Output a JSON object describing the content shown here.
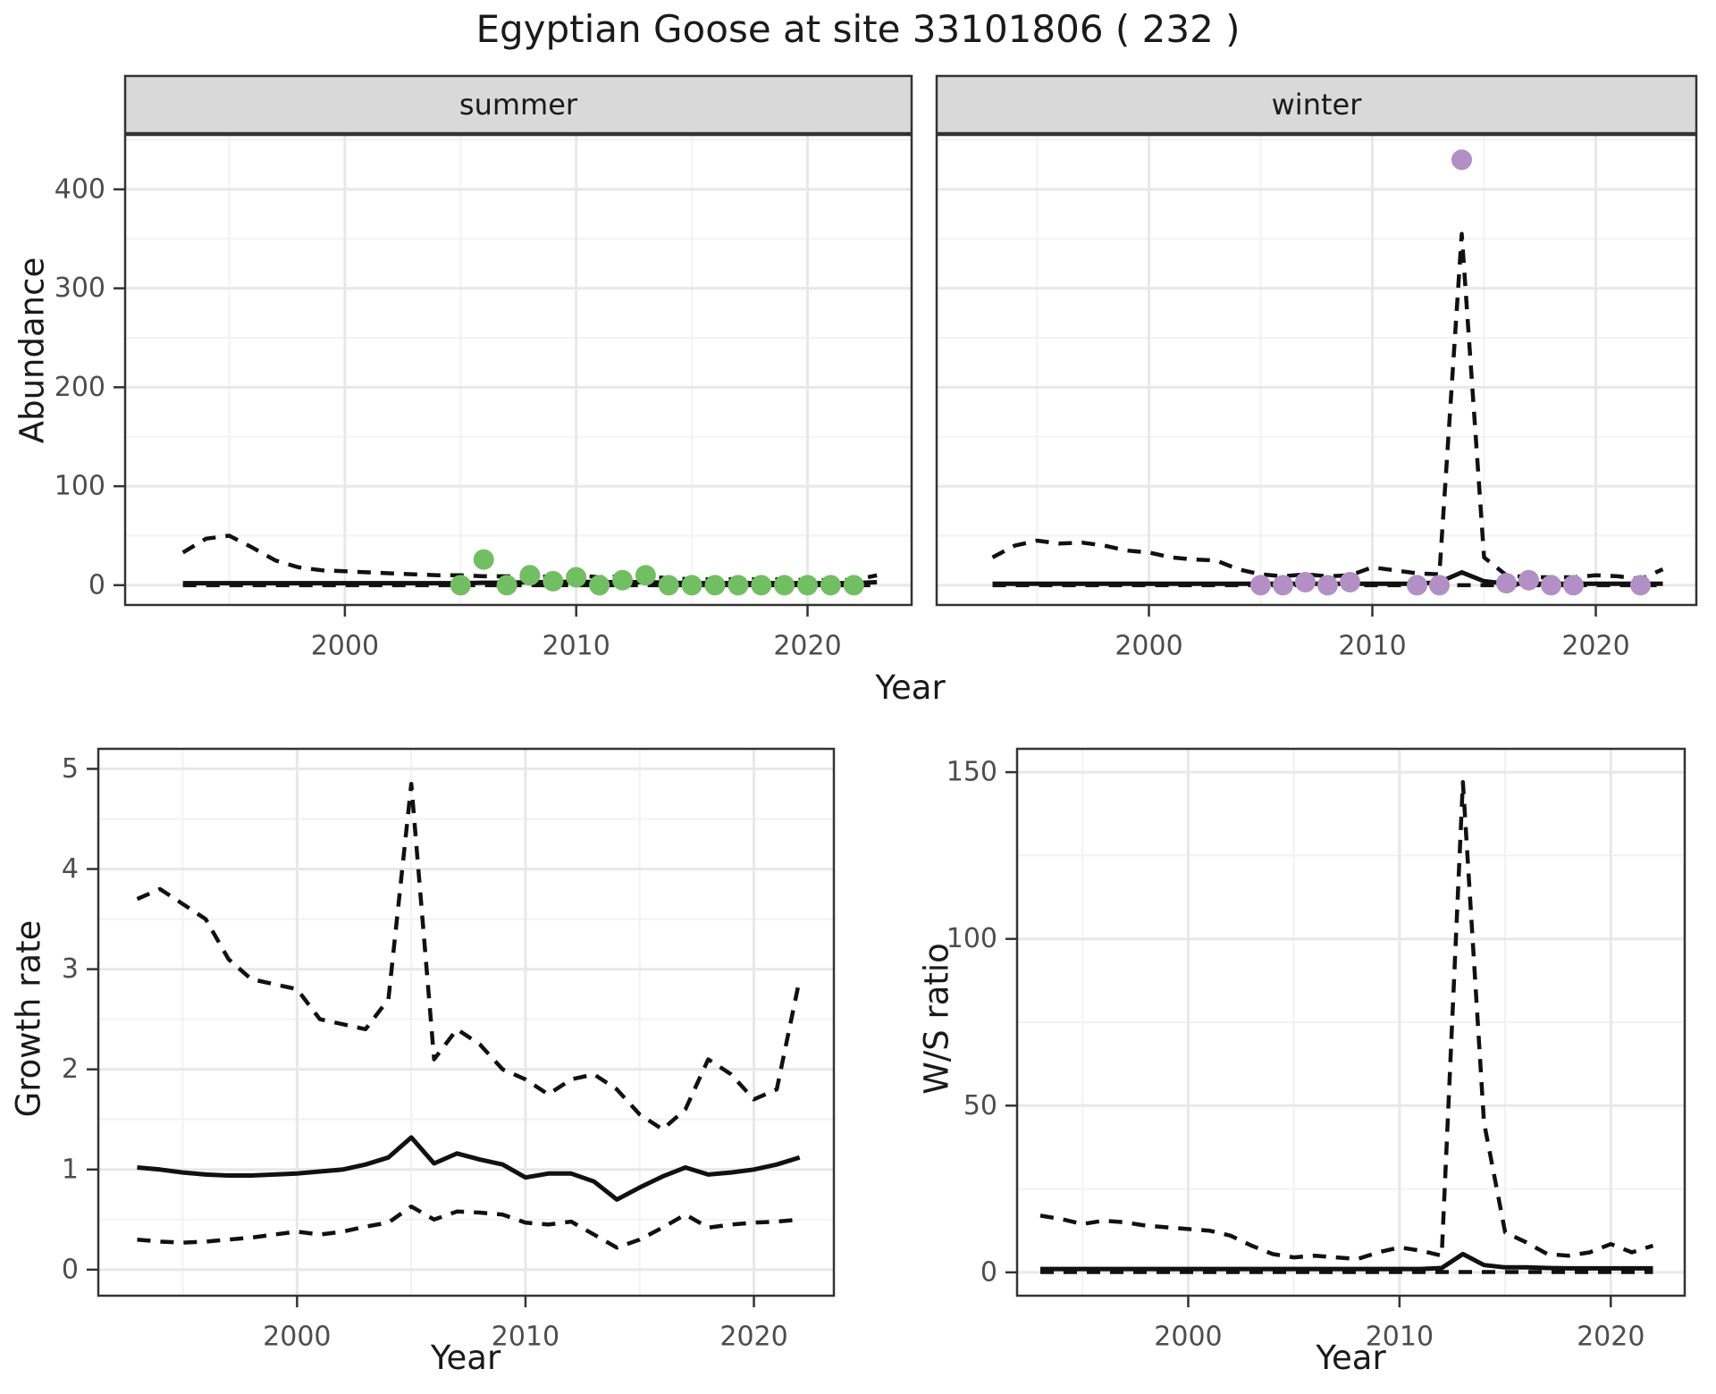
{
  "title": "Egyptian Goose at site 33101806 ( 232 )",
  "axis_labels": {
    "x_top": "Year",
    "x_bottom_left": "Year",
    "x_bottom_right": "Year",
    "y_top": "Abundance",
    "y_bottom_left": "Growth rate",
    "y_bottom_right": "W/S ratio"
  },
  "colors": {
    "summer_points": "#72be63",
    "winter_points": "#b28fc4",
    "line": "#111111",
    "strip_fill": "#d9d9d9",
    "panel_border": "#333333",
    "grid_major": "#e8e8e8",
    "grid_minor": "#f2f2f2",
    "tick_text": "#4d4d4d",
    "strip_text": "#1a1a1a"
  },
  "chart_data": [
    {
      "id": "abundance-summer",
      "type": "line",
      "facet_label": "summer",
      "xlabel": "Year",
      "ylabel": "Abundance",
      "x_range": [
        1990.5,
        2024.5
      ],
      "y_range": [
        -20,
        455
      ],
      "x_ticks": [
        2000,
        2010,
        2020
      ],
      "y_ticks": [
        0,
        100,
        200,
        300,
        400
      ],
      "x_minor": [
        1995,
        2005,
        2015
      ],
      "y_minor": [
        50,
        150,
        250,
        350,
        450
      ],
      "series": [
        {
          "name": "upper-ci",
          "style": "dashed",
          "x": [
            1993,
            1994,
            1995,
            1996,
            1997,
            1998,
            1999,
            2000,
            2001,
            2002,
            2003,
            2004,
            2005,
            2006,
            2007,
            2008,
            2009,
            2010,
            2011,
            2012,
            2013,
            2014,
            2015,
            2016,
            2017,
            2018,
            2019,
            2020,
            2021,
            2022,
            2023
          ],
          "y": [
            33,
            47,
            50,
            38,
            25,
            18,
            15,
            14,
            13,
            12,
            11,
            10,
            10,
            9,
            9,
            8,
            9,
            10,
            8,
            9,
            9,
            7,
            6,
            6,
            6,
            6,
            6,
            5,
            5,
            5,
            10
          ]
        },
        {
          "name": "estimate",
          "style": "solid",
          "x": [
            1993,
            1994,
            1995,
            1996,
            1997,
            1998,
            1999,
            2000,
            2001,
            2002,
            2003,
            2004,
            2005,
            2006,
            2007,
            2008,
            2009,
            2010,
            2011,
            2012,
            2013,
            2014,
            2015,
            2016,
            2017,
            2018,
            2019,
            2020,
            2021,
            2022,
            2023
          ],
          "y": [
            2,
            2,
            2,
            2,
            2,
            2,
            2,
            2,
            2,
            2,
            2,
            2,
            2,
            2.5,
            2.5,
            3,
            3,
            3.5,
            3,
            3,
            3,
            2.5,
            2,
            2,
            2,
            2,
            2,
            2,
            2,
            2,
            3
          ]
        },
        {
          "name": "lower-ci",
          "style": "dashed",
          "x": [
            1993,
            1994,
            1995,
            1996,
            1997,
            1998,
            1999,
            2000,
            2001,
            2002,
            2003,
            2004,
            2005,
            2006,
            2007,
            2008,
            2009,
            2010,
            2011,
            2012,
            2013,
            2014,
            2015,
            2016,
            2017,
            2018,
            2019,
            2020,
            2021,
            2022,
            2023
          ],
          "y": [
            0,
            0,
            0,
            0,
            0,
            0,
            0,
            0,
            0,
            0,
            0,
            0,
            0,
            0,
            0,
            0,
            0,
            0,
            0,
            0,
            0,
            0,
            0,
            0,
            0,
            0,
            0,
            0,
            0,
            0,
            0
          ]
        }
      ],
      "points": {
        "name": "observed-counts-summer",
        "color": "#72be63",
        "x": [
          2005,
          2006,
          2007,
          2008,
          2009,
          2010,
          2011,
          2012,
          2013,
          2014,
          2015,
          2016,
          2017,
          2018,
          2019,
          2020,
          2021,
          2022
        ],
        "y": [
          0,
          26,
          0,
          10,
          4,
          8,
          0,
          5,
          10,
          0,
          0,
          0,
          0,
          0,
          0,
          0,
          0,
          0
        ]
      }
    },
    {
      "id": "abundance-winter",
      "type": "line",
      "facet_label": "winter",
      "xlabel": "Year",
      "ylabel": "Abundance",
      "x_range": [
        1990.5,
        2024.5
      ],
      "y_range": [
        -20,
        455
      ],
      "x_ticks": [
        2000,
        2010,
        2020
      ],
      "y_ticks": [
        0,
        100,
        200,
        300,
        400
      ],
      "x_minor": [
        1995,
        2005,
        2015
      ],
      "y_minor": [
        50,
        150,
        250,
        350,
        450
      ],
      "series": [
        {
          "name": "upper-ci",
          "style": "dashed",
          "x": [
            1993,
            1994,
            1995,
            1996,
            1997,
            1998,
            1999,
            2000,
            2001,
            2002,
            2003,
            2004,
            2005,
            2006,
            2007,
            2008,
            2009,
            2010,
            2011,
            2012,
            2013,
            2014,
            2015,
            2016,
            2017,
            2018,
            2019,
            2020,
            2021,
            2022,
            2023
          ],
          "y": [
            28,
            40,
            45,
            42,
            43,
            40,
            35,
            33,
            28,
            26,
            25,
            16,
            11,
            9,
            11,
            9,
            10,
            18,
            15,
            12,
            11,
            355,
            28,
            10,
            8,
            8,
            8,
            10,
            9,
            6,
            16
          ]
        },
        {
          "name": "estimate",
          "style": "solid",
          "x": [
            1993,
            1994,
            1995,
            1996,
            1997,
            1998,
            1999,
            2000,
            2001,
            2002,
            2003,
            2004,
            2005,
            2006,
            2007,
            2008,
            2009,
            2010,
            2011,
            2012,
            2013,
            2014,
            2015,
            2016,
            2017,
            2018,
            2019,
            2020,
            2021,
            2022,
            2023
          ],
          "y": [
            1.5,
            1.5,
            1.5,
            1.5,
            1.5,
            1.5,
            1.5,
            1.5,
            1.5,
            1.5,
            1.5,
            1.5,
            1.5,
            1.5,
            1.5,
            1.5,
            1.5,
            1.5,
            1.5,
            1.5,
            3,
            13,
            4,
            1.5,
            1.5,
            1.5,
            1.5,
            1.5,
            1.5,
            1.5,
            1.5
          ]
        },
        {
          "name": "lower-ci",
          "style": "dashed",
          "x": [
            1993,
            1994,
            1995,
            1996,
            1997,
            1998,
            1999,
            2000,
            2001,
            2002,
            2003,
            2004,
            2005,
            2006,
            2007,
            2008,
            2009,
            2010,
            2011,
            2012,
            2013,
            2014,
            2015,
            2016,
            2017,
            2018,
            2019,
            2020,
            2021,
            2022,
            2023
          ],
          "y": [
            0,
            0,
            0,
            0,
            0,
            0,
            0,
            0,
            0,
            0,
            0,
            0,
            0,
            0,
            0,
            0,
            0,
            0,
            0,
            0,
            0,
            0,
            0,
            0,
            0,
            0,
            0,
            0,
            0,
            0,
            0
          ]
        }
      ],
      "points": {
        "name": "observed-counts-winter",
        "color": "#b28fc4",
        "x": [
          2005,
          2006,
          2007,
          2008,
          2009,
          2012,
          2013,
          2014,
          2016,
          2017,
          2018,
          2019,
          2022
        ],
        "y": [
          0,
          0,
          3,
          0,
          3,
          0,
          0,
          430,
          2,
          5,
          0,
          0,
          0
        ]
      }
    },
    {
      "id": "growth-rate",
      "type": "line",
      "facet_label": null,
      "xlabel": "Year",
      "ylabel": "Growth rate",
      "x_range": [
        1991.3,
        2023.5
      ],
      "y_range": [
        -0.26,
        5.2
      ],
      "x_ticks": [
        2000,
        2010,
        2020
      ],
      "y_ticks": [
        0,
        1,
        2,
        3,
        4,
        5
      ],
      "x_minor": [
        1995,
        2005,
        2015
      ],
      "y_minor": [
        0.5,
        1.5,
        2.5,
        3.5,
        4.5
      ],
      "series": [
        {
          "name": "upper-ci",
          "style": "dashed",
          "x": [
            1993,
            1994,
            1995,
            1996,
            1997,
            1998,
            1999,
            2000,
            2001,
            2002,
            2003,
            2004,
            2005,
            2006,
            2007,
            2008,
            2009,
            2010,
            2011,
            2012,
            2013,
            2014,
            2015,
            2016,
            2017,
            2018,
            2019,
            2020,
            2021,
            2022
          ],
          "y": [
            3.7,
            3.8,
            3.65,
            3.5,
            3.1,
            2.9,
            2.85,
            2.8,
            2.5,
            2.45,
            2.4,
            2.7,
            4.85,
            2.1,
            2.4,
            2.25,
            2.0,
            1.9,
            1.75,
            1.9,
            1.95,
            1.8,
            1.55,
            1.4,
            1.6,
            2.1,
            1.95,
            1.7,
            1.8,
            2.9
          ]
        },
        {
          "name": "estimate",
          "style": "solid",
          "x": [
            1993,
            1994,
            1995,
            1996,
            1997,
            1998,
            1999,
            2000,
            2001,
            2002,
            2003,
            2004,
            2005,
            2006,
            2007,
            2008,
            2009,
            2010,
            2011,
            2012,
            2013,
            2014,
            2015,
            2016,
            2017,
            2018,
            2019,
            2020,
            2021,
            2022
          ],
          "y": [
            1.02,
            1.0,
            0.97,
            0.95,
            0.94,
            0.94,
            0.95,
            0.96,
            0.98,
            1.0,
            1.05,
            1.12,
            1.32,
            1.06,
            1.16,
            1.1,
            1.05,
            0.92,
            0.96,
            0.96,
            0.88,
            0.7,
            0.82,
            0.93,
            1.02,
            0.95,
            0.97,
            1.0,
            1.05,
            1.12
          ]
        },
        {
          "name": "lower-ci",
          "style": "dashed",
          "x": [
            1993,
            1994,
            1995,
            1996,
            1997,
            1998,
            1999,
            2000,
            2001,
            2002,
            2003,
            2004,
            2005,
            2006,
            2007,
            2008,
            2009,
            2010,
            2011,
            2012,
            2013,
            2014,
            2015,
            2016,
            2017,
            2018,
            2019,
            2020,
            2021,
            2022
          ],
          "y": [
            0.3,
            0.28,
            0.27,
            0.28,
            0.3,
            0.32,
            0.35,
            0.38,
            0.35,
            0.38,
            0.43,
            0.47,
            0.63,
            0.5,
            0.58,
            0.57,
            0.55,
            0.47,
            0.45,
            0.48,
            0.35,
            0.22,
            0.3,
            0.42,
            0.55,
            0.42,
            0.45,
            0.47,
            0.48,
            0.5
          ]
        }
      ],
      "points": null
    },
    {
      "id": "ws-ratio",
      "type": "line",
      "facet_label": null,
      "xlabel": "Year",
      "ylabel": "W/S ratio",
      "x_range": [
        1991.9,
        2023.5
      ],
      "y_range": [
        -7,
        157
      ],
      "x_ticks": [
        2000,
        2010,
        2020
      ],
      "y_ticks": [
        0,
        50,
        100,
        150
      ],
      "x_minor": [
        1995,
        2005,
        2015
      ],
      "y_minor": [
        25,
        75,
        125
      ],
      "series": [
        {
          "name": "upper-ci",
          "style": "dashed",
          "x": [
            1993,
            1994,
            1995,
            1996,
            1997,
            1998,
            1999,
            2000,
            2001,
            2002,
            2003,
            2004,
            2005,
            2006,
            2007,
            2008,
            2009,
            2010,
            2011,
            2012,
            2013,
            2014,
            2015,
            2016,
            2017,
            2018,
            2019,
            2020,
            2021,
            2022
          ],
          "y": [
            17,
            16,
            14.5,
            15.5,
            15,
            14,
            13.5,
            13,
            12.5,
            11,
            8,
            5.5,
            4.5,
            5,
            4.5,
            4,
            6,
            7.5,
            6.5,
            5,
            147,
            45,
            12,
            9,
            5.5,
            5,
            6,
            8.5,
            6,
            8
          ]
        },
        {
          "name": "estimate",
          "style": "solid",
          "x": [
            1993,
            1994,
            1995,
            1996,
            1997,
            1998,
            1999,
            2000,
            2001,
            2002,
            2003,
            2004,
            2005,
            2006,
            2007,
            2008,
            2009,
            2010,
            2011,
            2012,
            2013,
            2014,
            2015,
            2016,
            2017,
            2018,
            2019,
            2020,
            2021,
            2022
          ],
          "y": [
            1,
            1,
            1,
            1,
            1,
            1,
            1,
            1,
            1,
            1,
            1,
            1,
            1,
            1,
            1,
            1,
            1,
            1,
            1,
            1.3,
            5.5,
            2.2,
            1.5,
            1.5,
            1.3,
            1.2,
            1.2,
            1.2,
            1.2,
            1.2
          ]
        },
        {
          "name": "lower-ci",
          "style": "dashed",
          "x": [
            1993,
            1994,
            1995,
            1996,
            1997,
            1998,
            1999,
            2000,
            2001,
            2002,
            2003,
            2004,
            2005,
            2006,
            2007,
            2008,
            2009,
            2010,
            2011,
            2012,
            2013,
            2014,
            2015,
            2016,
            2017,
            2018,
            2019,
            2020,
            2021,
            2022
          ],
          "y": [
            0.1,
            0.1,
            0.1,
            0.1,
            0.1,
            0.1,
            0.1,
            0.1,
            0.1,
            0.1,
            0.1,
            0.1,
            0.1,
            0.1,
            0.1,
            0.1,
            0.1,
            0.1,
            0.1,
            0.1,
            0.1,
            0.1,
            0.1,
            0.1,
            0.1,
            0.1,
            0.1,
            0.1,
            0.1,
            0.1
          ]
        }
      ],
      "points": null
    }
  ]
}
